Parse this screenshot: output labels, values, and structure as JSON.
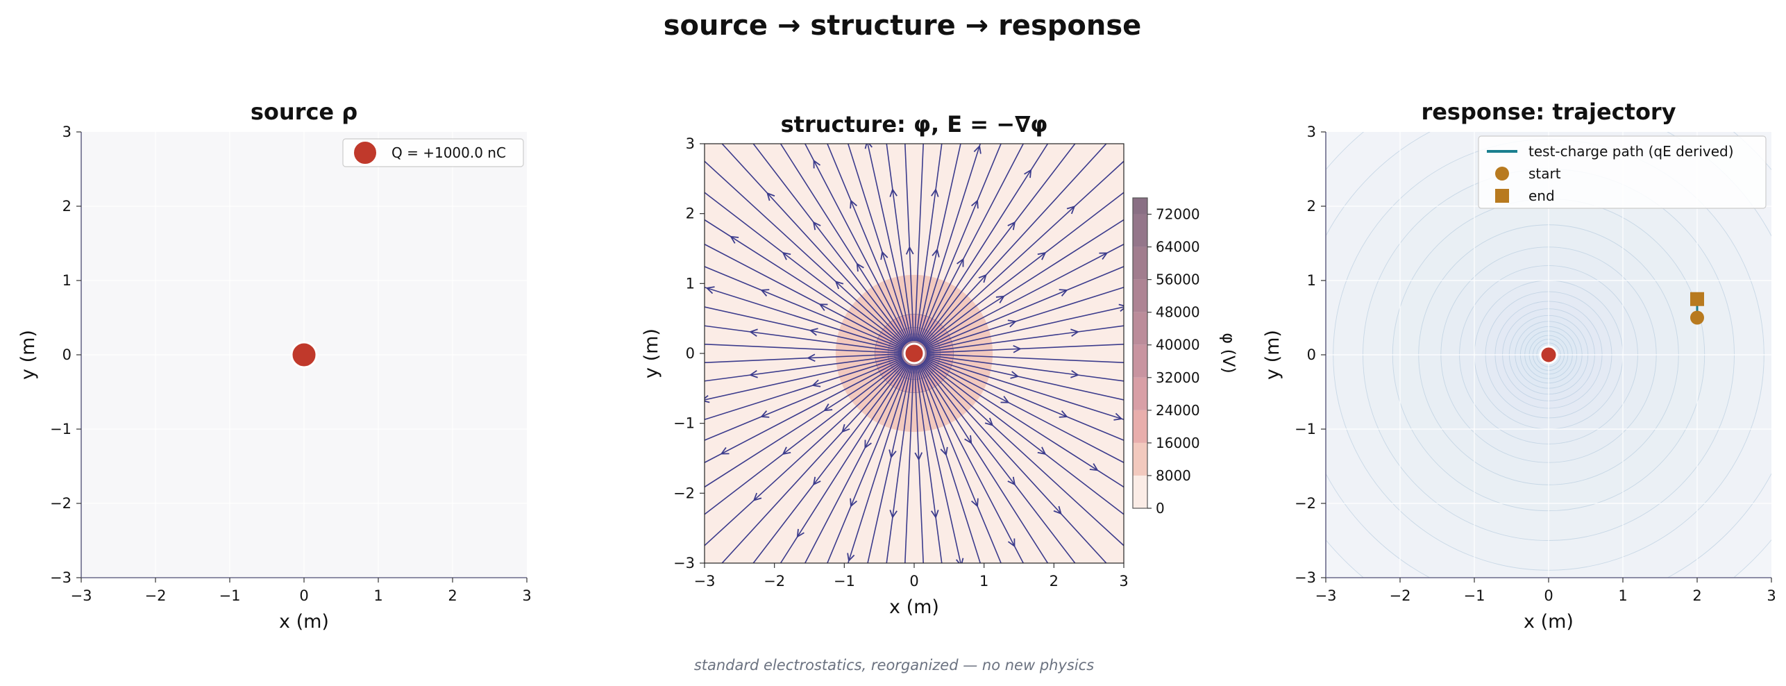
{
  "figure": {
    "suptitle": "source  →  structure  →  response",
    "footnote": "standard electrostatics, reorganized — no new physics"
  },
  "colors": {
    "charge": "#c0392b",
    "charge_edge": "#ffffff",
    "axes_bg": "#f7f7f9",
    "spine": "#6a6a8a",
    "streamline": "#3b3b8c",
    "potential_levels": [
      "#fbece6",
      "#f2c9be",
      "#e8aeac",
      "#d89fa6",
      "#c894a0",
      "#bb8c9a",
      "#ae8494",
      "#a17d8e",
      "#94768a",
      "#896f84"
    ],
    "trajectory": "#1b7f8f",
    "marker": "#b87a1f",
    "response_bg": "#f3f5f9",
    "response_contour": "#aac3d8",
    "footnote_color": "#6b7280"
  },
  "chart_data": [
    {
      "type": "scatter",
      "title": "source  ρ",
      "xlabel": "x (m)",
      "ylabel": "y (m)",
      "xlim": [
        -3,
        3
      ],
      "ylim": [
        -3,
        3
      ],
      "xticks": [
        "−3",
        "−2",
        "−1",
        "0",
        "1",
        "2",
        "3"
      ],
      "yticks": [
        "−3",
        "−2",
        "−1",
        "0",
        "1",
        "2",
        "3"
      ],
      "grid": true,
      "legend_position": "top-right",
      "series": [
        {
          "name": "Q = +1000.0 nC",
          "points": [
            {
              "x": 0,
              "y": 0
            }
          ]
        }
      ]
    },
    {
      "type": "heatmap",
      "title": "structure:  φ,  E = −∇φ",
      "xlabel": "x (m)",
      "ylabel": "y (m)",
      "xlim": [
        -3,
        3
      ],
      "ylim": [
        -3,
        3
      ],
      "xticks": [
        "−3",
        "−2",
        "−1",
        "0",
        "1",
        "2",
        "3"
      ],
      "yticks": [
        "−3",
        "−2",
        "−1",
        "0",
        "1",
        "2",
        "3"
      ],
      "charge_position": {
        "x": 0,
        "y": 0
      },
      "colorbar": {
        "label": "φ (V)",
        "range": [
          0,
          76000
        ],
        "ticks": [
          0,
          8000,
          16000,
          24000,
          32000,
          40000,
          48000,
          56000,
          64000,
          72000
        ],
        "tick_labels": [
          "0",
          "8000",
          "16000",
          "24000",
          "32000",
          "40000",
          "48000",
          "56000",
          "64000",
          "72000"
        ]
      },
      "potential_model": "phi = 8988 / r  (V)",
      "field_lines": "radial, outward from charge"
    },
    {
      "type": "line",
      "title": "response: trajectory",
      "xlabel": "x (m)",
      "ylabel": "y (m)",
      "xlim": [
        -3,
        3
      ],
      "ylim": [
        -3,
        3
      ],
      "xticks": [
        "−3",
        "−2",
        "−1",
        "0",
        "1",
        "2",
        "3"
      ],
      "yticks": [
        "−3",
        "−2",
        "−1",
        "0",
        "1",
        "2",
        "3"
      ],
      "grid": true,
      "legend_position": "top-right",
      "series": [
        {
          "name": "test-charge path (qE derived)",
          "points": [
            {
              "x": 2.0,
              "y": 0.5
            },
            {
              "x": 2.0,
              "y": 0.75
            }
          ]
        },
        {
          "name": "start",
          "points": [
            {
              "x": 2.0,
              "y": 0.5
            }
          ]
        },
        {
          "name": "end",
          "points": [
            {
              "x": 2.0,
              "y": 0.75
            }
          ]
        }
      ],
      "charge_position": {
        "x": 0,
        "y": 0
      }
    }
  ]
}
